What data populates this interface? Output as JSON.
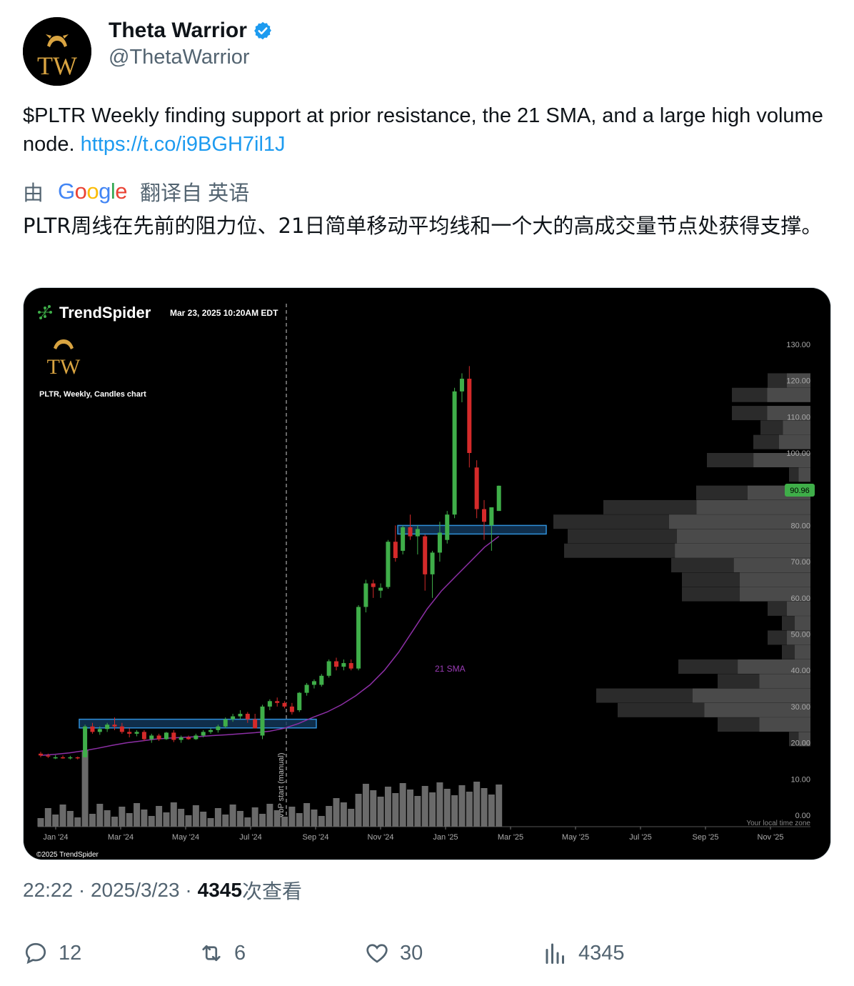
{
  "user": {
    "display_name": "Theta Warrior",
    "handle": "@ThetaWarrior",
    "avatar_text": "TW"
  },
  "tweet": {
    "text": "$PLTR Weekly finding support at prior resistance, the 21 SMA, and a large high volume node. ",
    "link": "https://t.co/i9BGH7il1J"
  },
  "translation": {
    "by": "由",
    "provider": "Google",
    "translated_from": "翻译自 英语",
    "text": "PLTR周线在先前的阻力位、21日简单移动平均线和一个大的高成交量节点处获得支撑。"
  },
  "chart": {
    "brand": "TrendSpider",
    "timestamp": "Mar 23, 2025 10:20AM EDT",
    "logo_text": "TW",
    "title": "PLTR, Weekly, Candles chart",
    "sma_label": "21 SMA",
    "vbp_label": "VbP start (manual)",
    "last_price": "90.96",
    "timezone_note": "Your local time zone",
    "copyright": "©2025 TrendSpider",
    "colors": {
      "up": "#3fae49",
      "down": "#d42a2a",
      "sma": "#8d2fa6",
      "zone": "#2f8fd9",
      "price_tag": "#3fae49"
    },
    "chart_data": {
      "type": "candlestick",
      "y_ticks": [
        "130.00",
        "120.00",
        "110.00",
        "100.00",
        "80.00",
        "70.00",
        "60.00",
        "50.00",
        "40.00",
        "30.00",
        "20.00",
        "10.00",
        "0.00"
      ],
      "x_ticks": [
        "Jan '24",
        "Mar '24",
        "May '24",
        "Jul '24",
        "Sep '24",
        "Nov '24",
        "Jan '25",
        "Mar '25",
        "May '25",
        "Jul '25",
        "Sep '25",
        "Nov '25"
      ],
      "ohlc": [
        [
          17,
          17.5,
          16,
          16.5
        ],
        [
          16.5,
          17,
          15.8,
          16.2
        ],
        [
          16,
          16.6,
          15.5,
          16
        ],
        [
          16,
          16.5,
          15.6,
          15.8
        ],
        [
          15.8,
          16.4,
          15.4,
          16
        ],
        [
          16,
          16.2,
          15.4,
          15.8
        ],
        [
          16,
          25,
          16,
          24.5
        ],
        [
          24.5,
          25.5,
          22.5,
          23
        ],
        [
          23,
          24.5,
          22.2,
          23.8
        ],
        [
          23.8,
          25.5,
          23,
          25
        ],
        [
          25,
          27,
          23.5,
          24.5
        ],
        [
          24.5,
          25.5,
          22.5,
          23
        ],
        [
          23,
          24,
          21.5,
          22.5
        ],
        [
          22.5,
          23.5,
          21.8,
          23
        ],
        [
          23,
          23.5,
          20.5,
          21
        ],
        [
          21,
          22.5,
          20,
          22
        ],
        [
          22,
          22.5,
          20.5,
          21
        ],
        [
          21,
          23,
          20.8,
          22.8
        ],
        [
          22.8,
          23.5,
          20.2,
          20.8
        ],
        [
          20.8,
          22,
          20,
          21.5
        ],
        [
          21.5,
          22,
          20.8,
          21
        ],
        [
          21,
          22.5,
          20.8,
          22
        ],
        [
          22,
          23.5,
          21.5,
          23
        ],
        [
          23,
          24,
          22.5,
          23.5
        ],
        [
          23.5,
          25,
          22.8,
          24.5
        ],
        [
          24.5,
          27,
          24,
          26.5
        ],
        [
          26.5,
          28,
          25.8,
          27.3
        ],
        [
          27.3,
          29,
          26.5,
          28
        ],
        [
          28,
          28.5,
          25.5,
          26.5
        ],
        [
          26.5,
          28,
          24,
          24
        ],
        [
          22,
          30.5,
          21,
          30
        ],
        [
          30,
          32,
          29,
          31.5
        ],
        [
          31.5,
          32.5,
          30,
          31
        ],
        [
          31,
          31.5,
          29.5,
          30
        ],
        [
          30,
          31,
          27.8,
          28.5
        ],
        [
          29,
          34,
          28.5,
          33.8
        ],
        [
          33.8,
          36.5,
          33,
          36
        ],
        [
          36,
          37.5,
          35,
          37
        ],
        [
          36,
          39,
          35.5,
          38.5
        ],
        [
          38.5,
          43,
          38,
          42.5
        ],
        [
          42.5,
          43.5,
          40,
          41
        ],
        [
          41,
          43,
          40,
          42
        ],
        [
          42,
          43,
          40,
          40.5
        ],
        [
          40.5,
          58,
          40,
          57.5
        ],
        [
          57.5,
          65,
          56,
          64
        ],
        [
          64,
          65,
          60,
          63
        ],
        [
          62,
          64,
          60,
          62.8
        ],
        [
          63,
          76,
          62.5,
          75.5
        ],
        [
          75.5,
          80,
          70,
          71
        ],
        [
          73,
          80,
          72,
          79.5
        ],
        [
          79.5,
          83,
          76,
          77
        ],
        [
          77,
          80,
          72,
          79
        ],
        [
          77,
          77.5,
          62,
          66.5
        ],
        [
          66.5,
          73,
          60,
          72.5
        ],
        [
          72.5,
          81,
          70,
          78
        ],
        [
          76,
          84,
          75,
          83
        ],
        [
          83,
          118,
          82,
          117
        ],
        [
          117,
          122,
          114,
          120.5
        ],
        [
          120.5,
          124,
          96,
          100
        ],
        [
          96,
          98,
          82,
          84.5
        ],
        [
          84.5,
          87,
          76,
          81
        ],
        [
          80,
          84,
          73,
          85
        ],
        [
          84,
          91,
          84,
          90.96
        ]
      ],
      "sma21": [
        16.5,
        16.8,
        17.2,
        17.8,
        18.5,
        19.3,
        20,
        20.5,
        21,
        21.3,
        21.5,
        21.7,
        22,
        22.2,
        22.5,
        22.8,
        23.2,
        24,
        25.3,
        27,
        28.5,
        30.5,
        33,
        36,
        40,
        45,
        51,
        57,
        62,
        66,
        70,
        74,
        77
      ],
      "volume_profile_note": "horizontal volume-by-price histogram on right",
      "support_zones": [
        {
          "low": 24.5,
          "high": 26.5
        },
        {
          "low": 77.5,
          "high": 80
        }
      ]
    }
  },
  "meta": {
    "time": "22:22",
    "dot1": "·",
    "date": "2025/3/23",
    "dot2": "·",
    "views": "4345",
    "views_label": "次查看"
  },
  "actions": {
    "replies": "12",
    "retweets": "6",
    "likes": "30",
    "views": "4345"
  }
}
